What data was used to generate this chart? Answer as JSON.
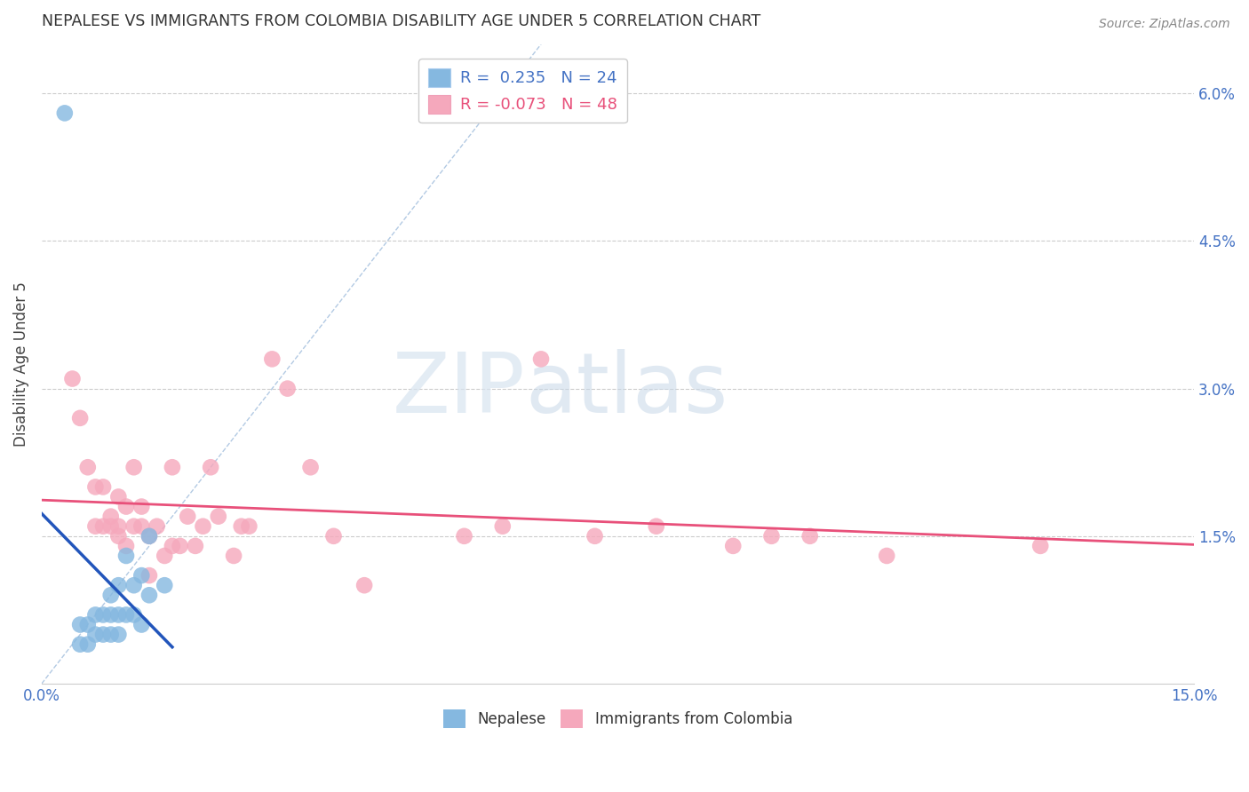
{
  "title": "NEPALESE VS IMMIGRANTS FROM COLOMBIA DISABILITY AGE UNDER 5 CORRELATION CHART",
  "source": "Source: ZipAtlas.com",
  "ylabel": "Disability Age Under 5",
  "ytick_values": [
    0.0,
    0.015,
    0.03,
    0.045,
    0.06
  ],
  "xlim": [
    0.0,
    0.15
  ],
  "ylim": [
    0.0,
    0.065
  ],
  "nepalese_color": "#85b8e0",
  "colombia_color": "#f5a8bc",
  "nepalese_trendline_color": "#2255bb",
  "colombia_trendline_color": "#e8507a",
  "diagonal_color": "#aac4e0",
  "legend_r1": "R =  0.235",
  "legend_n1": "N = 24",
  "legend_r2": "R = -0.073",
  "legend_n2": "N = 48",
  "legend_color1": "#4472c4",
  "legend_color2": "#e8507a",
  "watermark_zip": "ZIP",
  "watermark_atlas": "atlas",
  "background_color": "#ffffff",
  "grid_color": "#cccccc",
  "nepalese_x": [
    0.003,
    0.005,
    0.005,
    0.006,
    0.006,
    0.007,
    0.007,
    0.008,
    0.008,
    0.009,
    0.009,
    0.009,
    0.01,
    0.01,
    0.01,
    0.011,
    0.011,
    0.012,
    0.012,
    0.013,
    0.013,
    0.014,
    0.014,
    0.016
  ],
  "nepalese_y": [
    0.058,
    0.006,
    0.004,
    0.004,
    0.006,
    0.005,
    0.007,
    0.005,
    0.007,
    0.005,
    0.007,
    0.009,
    0.005,
    0.007,
    0.01,
    0.007,
    0.013,
    0.007,
    0.01,
    0.006,
    0.011,
    0.009,
    0.015,
    0.01
  ],
  "colombia_x": [
    0.004,
    0.005,
    0.006,
    0.007,
    0.007,
    0.008,
    0.008,
    0.009,
    0.009,
    0.01,
    0.01,
    0.01,
    0.011,
    0.011,
    0.012,
    0.012,
    0.013,
    0.013,
    0.014,
    0.014,
    0.015,
    0.016,
    0.017,
    0.017,
    0.018,
    0.019,
    0.02,
    0.021,
    0.022,
    0.023,
    0.025,
    0.026,
    0.027,
    0.03,
    0.032,
    0.035,
    0.038,
    0.042,
    0.055,
    0.06,
    0.065,
    0.072,
    0.08,
    0.09,
    0.095,
    0.1,
    0.11,
    0.13
  ],
  "colombia_y": [
    0.031,
    0.027,
    0.022,
    0.016,
    0.02,
    0.016,
    0.02,
    0.016,
    0.017,
    0.016,
    0.015,
    0.019,
    0.018,
    0.014,
    0.016,
    0.022,
    0.016,
    0.018,
    0.015,
    0.011,
    0.016,
    0.013,
    0.014,
    0.022,
    0.014,
    0.017,
    0.014,
    0.016,
    0.022,
    0.017,
    0.013,
    0.016,
    0.016,
    0.033,
    0.03,
    0.022,
    0.015,
    0.01,
    0.015,
    0.016,
    0.033,
    0.015,
    0.016,
    0.014,
    0.015,
    0.015,
    0.013,
    0.014
  ]
}
